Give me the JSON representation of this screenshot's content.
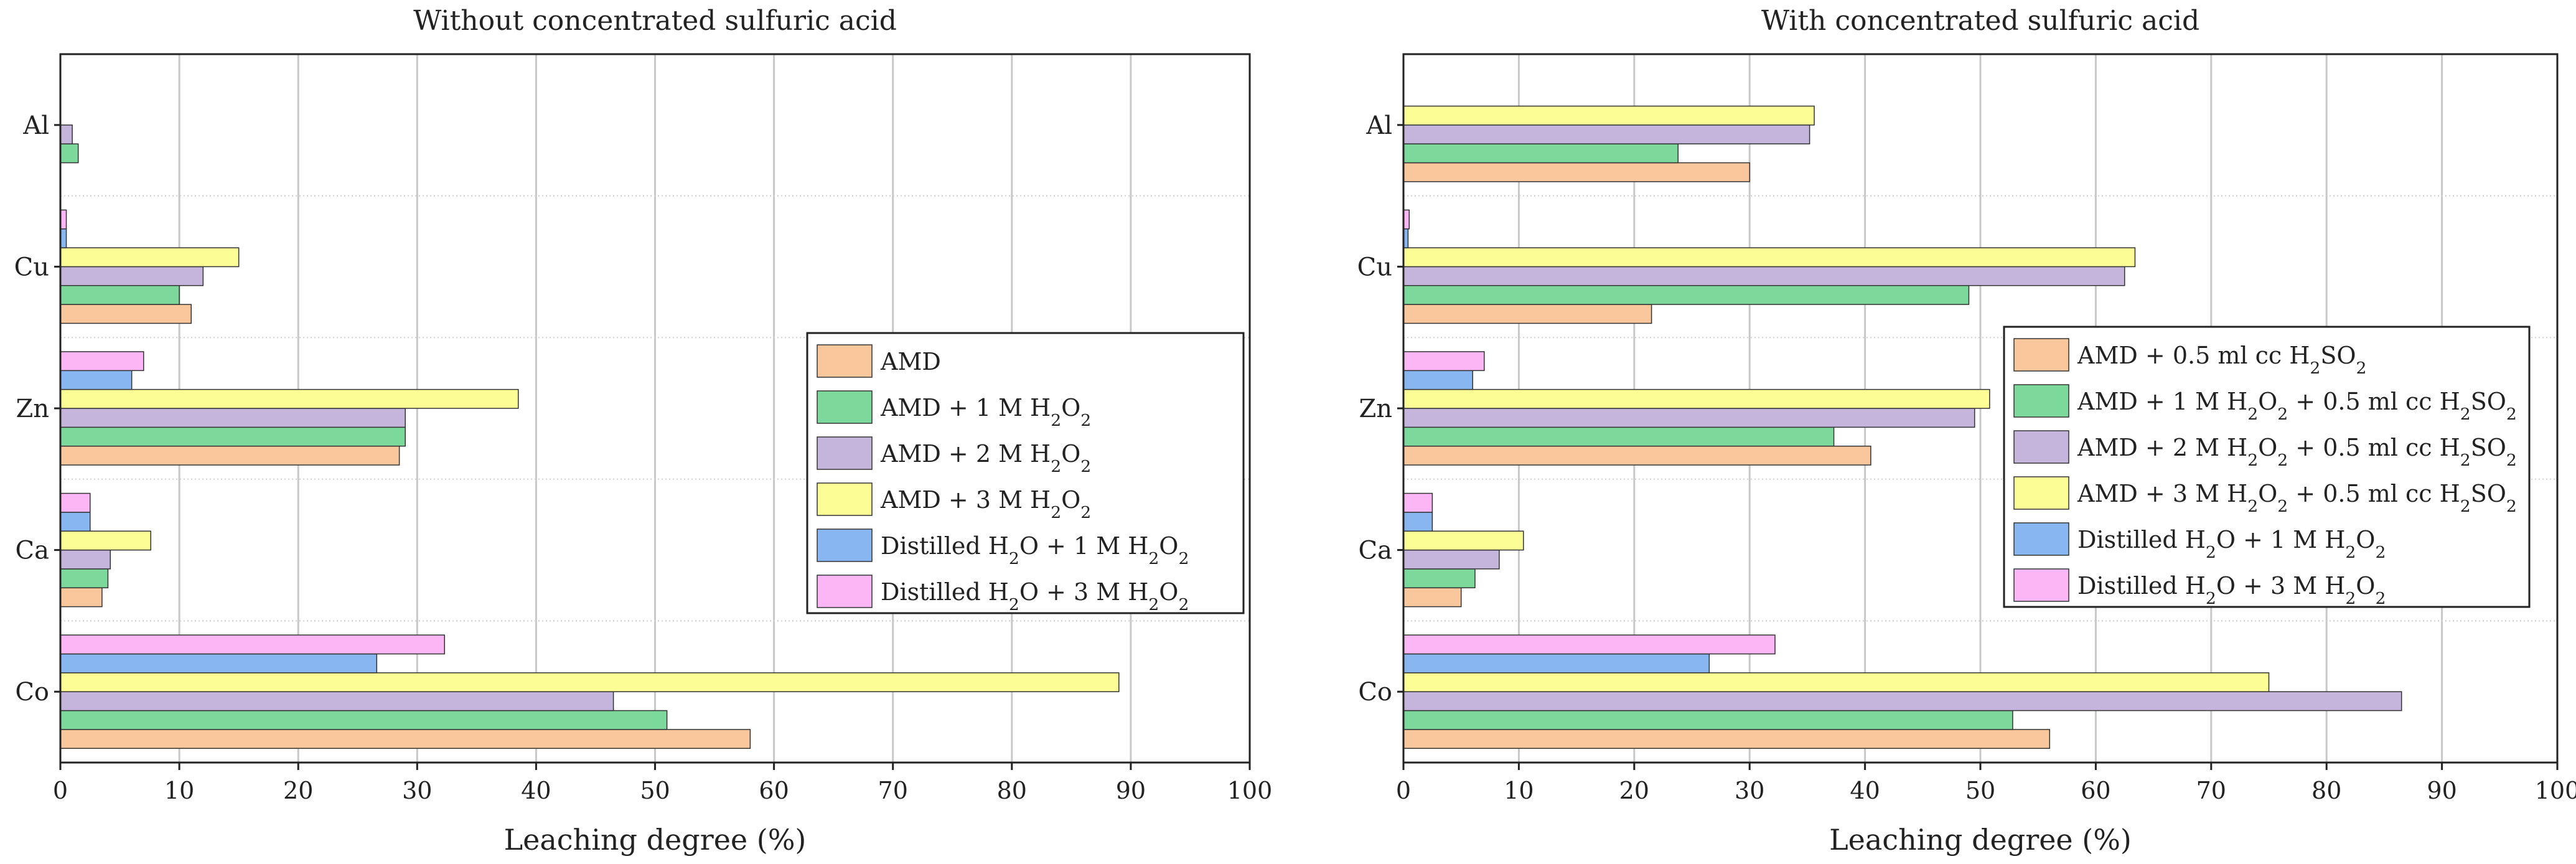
{
  "chart_data": [
    {
      "type": "bar",
      "orientation": "horizontal",
      "title": "Without concentrated sulfuric acid",
      "xlabel": "Leaching degree (%)",
      "ylabel": "",
      "xlim": [
        0,
        100
      ],
      "xticks": [
        "0",
        "10",
        "20",
        "30",
        "40",
        "50",
        "60",
        "70",
        "80",
        "90",
        "100"
      ],
      "grid": "vertical",
      "legend_position": "center-right",
      "categories": [
        "Co",
        "Ca",
        "Zn",
        "Cu",
        "Al"
      ],
      "series": [
        {
          "name": "AMD",
          "sub": "",
          "tail": "",
          "color": "#f9c79b",
          "values": [
            58,
            3.5,
            28.5,
            11,
            0
          ]
        },
        {
          "name": "AMD + 1 M H",
          "sub": "2",
          "tail": "O",
          "sub2": "2",
          "color": "#7dd89b",
          "values": [
            51,
            4,
            29,
            10,
            1.5
          ]
        },
        {
          "name": "AMD + 2 M H",
          "sub": "2",
          "tail": "O",
          "sub2": "2",
          "color": "#c5b4dc",
          "values": [
            46.5,
            4.2,
            29,
            12,
            1
          ]
        },
        {
          "name": "AMD + 3 M H",
          "sub": "2",
          "tail": "O",
          "sub2": "2",
          "color": "#fdfd96",
          "values": [
            89,
            7.6,
            38.5,
            15,
            0
          ]
        },
        {
          "name": "Distilled H",
          "sub": "2",
          "tail": "O + 1 M H",
          "tail2": "O",
          "sub3": "2",
          "color": "#87b6f0",
          "values": [
            26.6,
            2.5,
            6,
            0.5,
            0
          ]
        },
        {
          "name": "Distilled H",
          "sub": "2",
          "tail": "O + 3 M H",
          "tail2": "O",
          "sub3": "2",
          "color": "#fcb6f6",
          "values": [
            32.3,
            2.5,
            7,
            0.5,
            0
          ]
        }
      ]
    },
    {
      "type": "bar",
      "orientation": "horizontal",
      "title": "With concentrated sulfuric acid",
      "xlabel": "Leaching degree (%)",
      "ylabel": "",
      "xlim": [
        0,
        100
      ],
      "xticks": [
        "0",
        "10",
        "20",
        "30",
        "40",
        "50",
        "60",
        "70",
        "80",
        "90",
        "100"
      ],
      "grid": "vertical",
      "legend_position": "center-right",
      "categories": [
        "Co",
        "Ca",
        "Zn",
        "Cu",
        "Al"
      ],
      "series": [
        {
          "name": "AMD + 0.5 ml cc H",
          "sub": "2",
          "tail": "SO",
          "sub2": "2",
          "color": "#f9c79b",
          "values": [
            56,
            5,
            40.5,
            21.5,
            30
          ]
        },
        {
          "name": "AMD + 1 M H",
          "sub": "2",
          "tail": "O",
          "sub2": "2",
          "tail3": " + 0.5 ml cc H",
          "sub4": "2",
          "tail4": "SO",
          "sub5": "2",
          "color": "#7dd89b",
          "values": [
            52.8,
            6.2,
            37.3,
            49,
            23.8
          ]
        },
        {
          "name": "AMD + 2 M H",
          "sub": "2",
          "tail": "O",
          "sub2": "2",
          "tail3": " + 0.5 ml cc H",
          "sub4": "2",
          "tail4": "SO",
          "sub5": "2",
          "color": "#c5b4dc",
          "values": [
            86.5,
            8.3,
            49.5,
            62.5,
            35.2
          ]
        },
        {
          "name": "AMD + 3 M H",
          "sub": "2",
          "tail": "O",
          "sub2": "2",
          "tail3": " + 0.5 ml cc H",
          "sub4": "2",
          "tail4": "SO",
          "sub5": "2",
          "color": "#fdfd96",
          "values": [
            75,
            10.4,
            50.8,
            63.4,
            35.6
          ]
        },
        {
          "name": "Distilled H",
          "sub": "2",
          "tail": "O + 1 M H",
          "tail2": "O",
          "sub3": "2",
          "color": "#87b6f0",
          "values": [
            26.5,
            2.5,
            6,
            0.4,
            0
          ]
        },
        {
          "name": "Distilled H",
          "sub": "2",
          "tail": "O + 3 M H",
          "tail2": "O",
          "sub3": "2",
          "color": "#fcb6f6",
          "values": [
            32.2,
            2.5,
            7,
            0.5,
            0
          ]
        }
      ]
    }
  ]
}
